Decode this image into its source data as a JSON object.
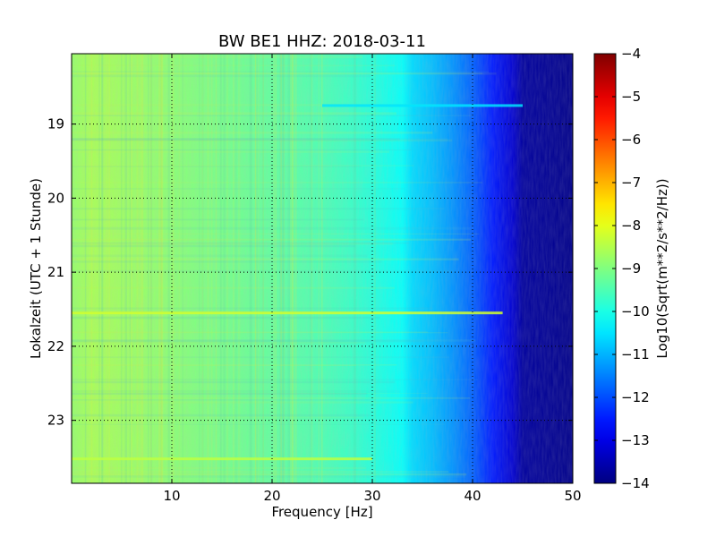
{
  "chart_data": {
    "type": "heatmap",
    "title": "BW BE1 HHZ: 2018-03-11",
    "xlabel": "Frequency [Hz]",
    "ylabel": "Lokalzeit (UTC + 1 Stunde)",
    "xlim": [
      0,
      50
    ],
    "ylim_hours": [
      18.05,
      23.85
    ],
    "y_inverted": true,
    "x_ticks": [
      10,
      20,
      30,
      40,
      50
    ],
    "y_ticks": [
      19,
      20,
      21,
      22,
      23
    ],
    "grid": true,
    "colormap": "jet",
    "colorbar": {
      "label": "Log10(Sqrt(m**2/s**2/Hz))",
      "range": [
        -14,
        -4
      ],
      "ticks": [
        "-4",
        "-5",
        "-6",
        "-7",
        "-8",
        "-9",
        "-10",
        "-11",
        "-12",
        "-13",
        "-14"
      ]
    },
    "frequency_profile": {
      "frequency_hz": [
        0,
        2,
        5,
        10,
        15,
        20,
        25,
        28,
        31,
        33,
        34,
        36,
        38,
        40,
        42,
        44,
        45,
        50
      ],
      "log10_amplitude": [
        -8.8,
        -8.6,
        -8.7,
        -8.9,
        -9.1,
        -9.3,
        -9.5,
        -9.7,
        -10.0,
        -10.2,
        -10.6,
        -10.9,
        -11.3,
        -11.8,
        -12.5,
        -13.2,
        -13.7,
        -13.9
      ]
    },
    "notable_events": [
      {
        "time_hours": 18.75,
        "freq_range_hz": [
          25,
          45
        ],
        "log10_amplitude": -10.5
      },
      {
        "time_hours": 21.55,
        "freq_range_hz": [
          0,
          43
        ],
        "log10_amplitude": -8.2
      },
      {
        "time_hours": 23.52,
        "freq_range_hz": [
          0,
          30
        ],
        "log10_amplitude": -8.4
      }
    ]
  }
}
